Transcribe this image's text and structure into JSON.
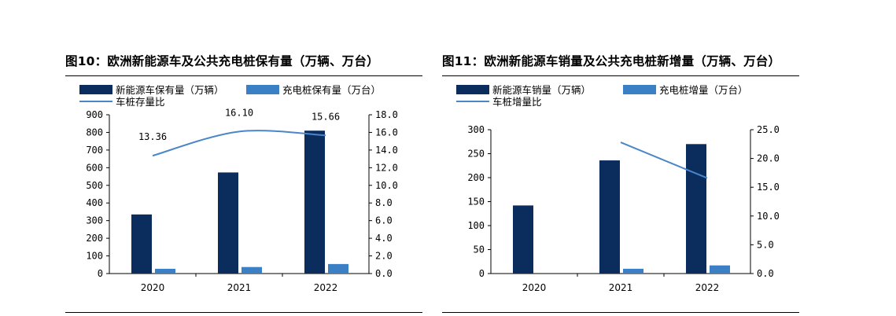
{
  "chart_data": [
    {
      "type": "bar",
      "title": "图10：欧洲新能源车及公共充电桩保有量（万辆、万台）",
      "categories": [
        "2020",
        "2021",
        "2022"
      ],
      "series": [
        {
          "name": "新能源车保有量（万辆）",
          "type": "bar",
          "axis": "left",
          "color": "#0a2d5e",
          "values": [
            335,
            573,
            810
          ]
        },
        {
          "name": "充电桩保有量（万台）",
          "type": "bar",
          "axis": "left",
          "color": "#3b7fc4",
          "values": [
            27,
            37,
            54
          ]
        },
        {
          "name": "车桩存量比",
          "type": "line",
          "axis": "right",
          "color": "#4a86c8",
          "values": [
            13.36,
            16.1,
            15.66
          ],
          "labels": [
            "13.36",
            "16.10",
            "15.66"
          ]
        }
      ],
      "ylim": [
        0,
        900
      ],
      "yticks": [
        "0",
        "100",
        "200",
        "300",
        "400",
        "500",
        "600",
        "700",
        "800",
        "900"
      ],
      "y2lim": [
        0,
        18
      ],
      "y2ticks": [
        "0.0",
        "2.0",
        "4.0",
        "6.0",
        "8.0",
        "10.0",
        "12.0",
        "14.0",
        "16.0",
        "18.0"
      ],
      "legend": "top"
    },
    {
      "type": "bar",
      "title": "图11：欧洲新能源车销量及公共充电桩新增量（万辆、万台）",
      "categories": [
        "2020",
        "2021",
        "2022"
      ],
      "series": [
        {
          "name": "新能源车销量（万辆）",
          "type": "bar",
          "axis": "left",
          "color": "#0a2d5e",
          "values": [
            142,
            236,
            270
          ]
        },
        {
          "name": "充电桩增量（万台）",
          "type": "bar",
          "axis": "left",
          "color": "#3b7fc4",
          "values": [
            0,
            10,
            17
          ]
        },
        {
          "name": "车桩增量比",
          "type": "line",
          "axis": "right",
          "color": "#4a86c8",
          "values": [
            null,
            22.8,
            16.6
          ],
          "labels": []
        }
      ],
      "ylim": [
        0,
        300
      ],
      "yticks": [
        "0",
        "50",
        "100",
        "150",
        "200",
        "250",
        "300"
      ],
      "y2lim": [
        0,
        25
      ],
      "y2ticks": [
        "0.0",
        "5.0",
        "10.0",
        "15.0",
        "20.0",
        "25.0"
      ],
      "legend": "top"
    }
  ]
}
